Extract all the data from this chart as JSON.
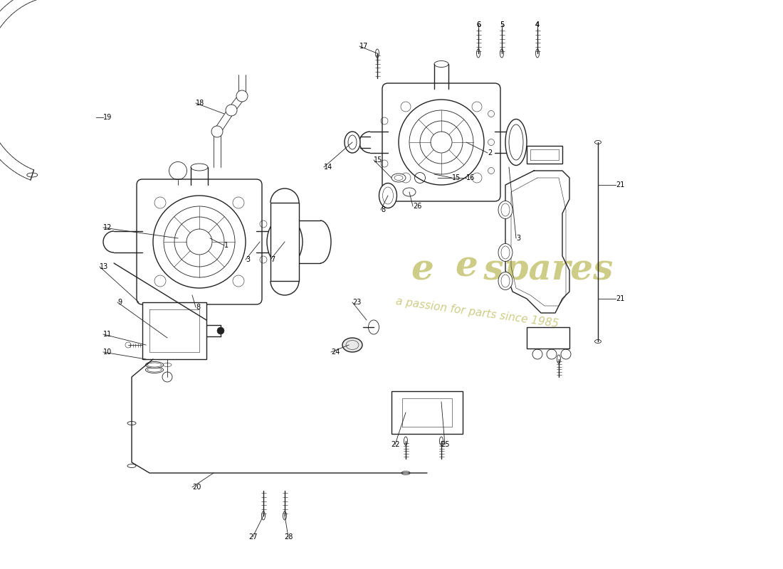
{
  "background_color": "#ffffff",
  "line_color": "#222222",
  "watermark_color1": "#c8c87a",
  "watermark_color2": "#b8b870",
  "fig_width": 11.0,
  "fig_height": 8.0,
  "dpi": 100,
  "xlim": [
    0,
    110
  ],
  "ylim": [
    0,
    80
  ]
}
